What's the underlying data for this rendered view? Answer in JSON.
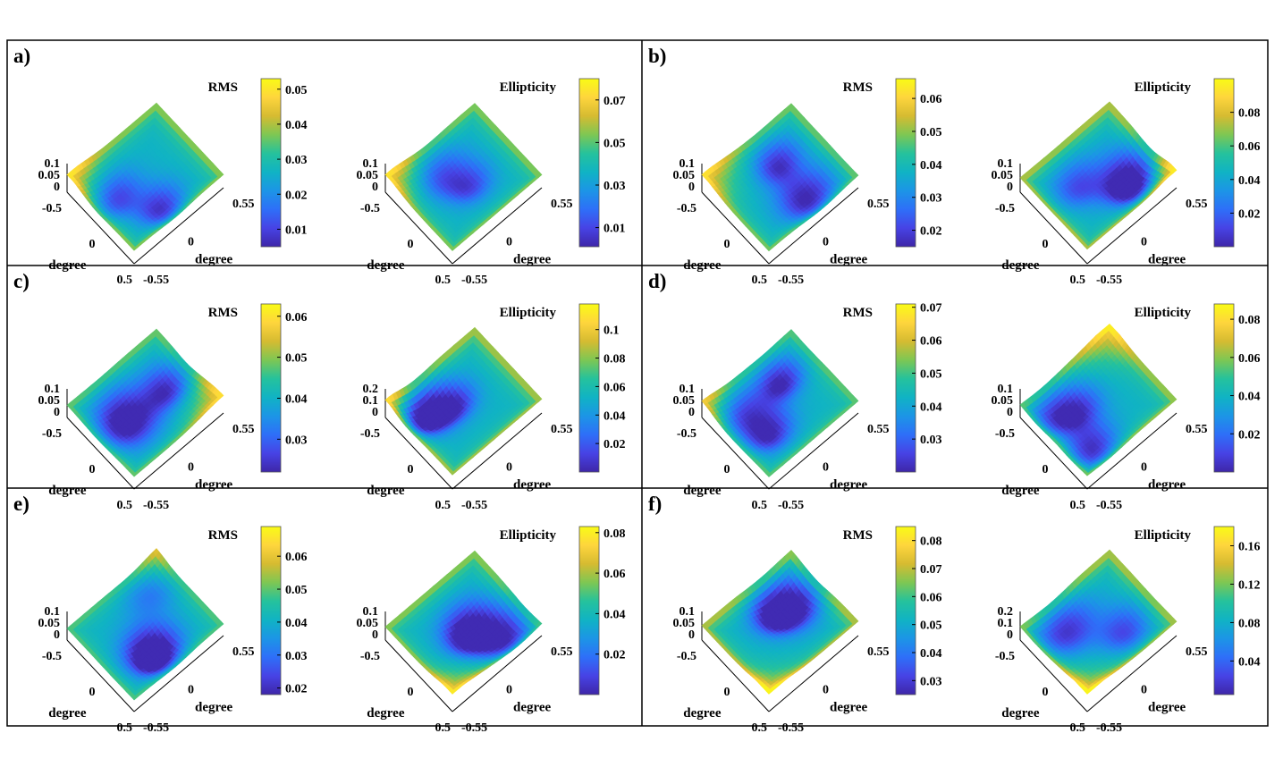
{
  "figure": {
    "background": "#ffffff",
    "border_color": "#000000"
  },
  "colormap": [
    "#3e26a8",
    "#4743e5",
    "#2e6ff8",
    "#1c95e6",
    "#10b3c4",
    "#25c29c",
    "#7ec753",
    "#d6bb31",
    "#fed53d",
    "#f9fb15"
  ],
  "common": {
    "x_ticks": [
      "-0.5",
      "0",
      "0.5"
    ],
    "y_ticks": [
      "-0.55",
      "0",
      "0.55"
    ],
    "xlabel": "degree",
    "ylabel": "degree"
  },
  "chart_data": [
    {
      "panel": "a)",
      "type": "surface",
      "plots": [
        {
          "title": "RMS",
          "z_ticks": [
            "0.1",
            "0.05",
            "0"
          ],
          "zlim": [
            0,
            0.1
          ],
          "colorbar": {
            "range": [
              0.005,
              0.053
            ],
            "ticks": [
              "0.05",
              "0.04",
              "0.03",
              "0.02",
              "0.01"
            ]
          }
        },
        {
          "title": "Ellipticity",
          "z_ticks": [
            "0.1",
            "0.05",
            "0"
          ],
          "zlim": [
            0,
            0.1
          ],
          "colorbar": {
            "range": [
              0.001,
              0.08
            ],
            "ticks": [
              "0.07",
              "0.05",
              "0.03",
              "0.01"
            ]
          }
        }
      ]
    },
    {
      "panel": "b)",
      "type": "surface",
      "plots": [
        {
          "title": "RMS",
          "z_ticks": [
            "0.1",
            "0.05",
            "0"
          ],
          "zlim": [
            0,
            0.1
          ],
          "colorbar": {
            "range": [
              0.015,
              0.066
            ],
            "ticks": [
              "0.06",
              "0.05",
              "0.04",
              "0.03",
              "0.02"
            ]
          }
        },
        {
          "title": "Ellipticity",
          "z_ticks": [
            "0.1",
            "0.05",
            "0"
          ],
          "zlim": [
            0,
            0.1
          ],
          "colorbar": {
            "range": [
              0.0,
              0.1
            ],
            "ticks": [
              "0.08",
              "0.06",
              "0.04",
              "0.02"
            ]
          }
        }
      ]
    },
    {
      "panel": "c)",
      "type": "surface",
      "plots": [
        {
          "title": "RMS",
          "z_ticks": [
            "0.1",
            "0.05",
            "0"
          ],
          "zlim": [
            0,
            0.1
          ],
          "colorbar": {
            "range": [
              0.022,
              0.063
            ],
            "ticks": [
              "0.06",
              "0.05",
              "0.04",
              "0.03"
            ]
          }
        },
        {
          "title": "Ellipticity",
          "z_ticks": [
            "0.2",
            "0.1",
            "0"
          ],
          "zlim": [
            0,
            0.2
          ],
          "colorbar": {
            "range": [
              0.0,
              0.118
            ],
            "ticks": [
              "0.1",
              "0.08",
              "0.06",
              "0.04",
              "0.02"
            ]
          }
        }
      ]
    },
    {
      "panel": "d)",
      "type": "surface",
      "plots": [
        {
          "title": "RMS",
          "z_ticks": [
            "0.1",
            "0.05",
            "0"
          ],
          "zlim": [
            0,
            0.1
          ],
          "colorbar": {
            "range": [
              0.02,
              0.071
            ],
            "ticks": [
              "0.07",
              "0.06",
              "0.05",
              "0.04",
              "0.03"
            ]
          }
        },
        {
          "title": "Ellipticity",
          "z_ticks": [
            "0.1",
            "0.05",
            "0"
          ],
          "zlim": [
            0,
            0.1
          ],
          "colorbar": {
            "range": [
              0.0,
              0.088
            ],
            "ticks": [
              "0.08",
              "0.06",
              "0.04",
              "0.02"
            ]
          }
        }
      ]
    },
    {
      "panel": "e)",
      "type": "surface",
      "plots": [
        {
          "title": "RMS",
          "z_ticks": [
            "0.1",
            "0.05",
            "0"
          ],
          "zlim": [
            0,
            0.1
          ],
          "colorbar": {
            "range": [
              0.018,
              0.069
            ],
            "ticks": [
              "0.06",
              "0.05",
              "0.04",
              "0.03",
              "0.02"
            ]
          }
        },
        {
          "title": "Ellipticity",
          "z_ticks": [
            "0.1",
            "0.05",
            "0"
          ],
          "zlim": [
            0,
            0.1
          ],
          "colorbar": {
            "range": [
              0.0,
              0.083
            ],
            "ticks": [
              "0.08",
              "0.06",
              "0.04",
              "0.02"
            ]
          }
        }
      ]
    },
    {
      "panel": "f)",
      "type": "surface",
      "plots": [
        {
          "title": "RMS",
          "z_ticks": [
            "0.1",
            "0.05",
            "0"
          ],
          "zlim": [
            0,
            0.1
          ],
          "colorbar": {
            "range": [
              0.025,
              0.085
            ],
            "ticks": [
              "0.08",
              "0.07",
              "0.06",
              "0.05",
              "0.04",
              "0.03"
            ]
          }
        },
        {
          "title": "Ellipticity",
          "z_ticks": [
            "0.2",
            "0.1",
            "0"
          ],
          "zlim": [
            0,
            0.2
          ],
          "colorbar": {
            "range": [
              0.005,
              0.18
            ],
            "ticks": [
              "0.16",
              "0.12",
              "0.08",
              "0.04"
            ]
          }
        }
      ]
    }
  ]
}
